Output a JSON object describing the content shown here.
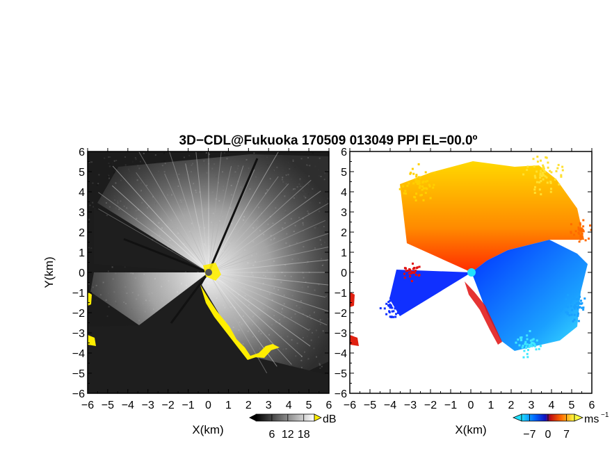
{
  "title": "3D−CDL@Fukuoka 170509 013049 PPI EL=00.0º",
  "colors": {
    "highlight": "#ffee00",
    "echo_dark": "#1a1a1a",
    "echo_bright": "#f0f0f0",
    "vel_negative": "#0033ff",
    "vel_positive": "#ff2200",
    "vel_near_zero": "#ffe000"
  },
  "chart_data": [
    {
      "type": "heatmap",
      "panel": "left",
      "field": "backscatter intensity",
      "xlabel": "X(km)",
      "ylabel": "Y(km)",
      "xlim": [
        -6,
        6
      ],
      "ylim": [
        -6,
        6
      ],
      "x_ticks": [
        "−6",
        "−5",
        "−4",
        "−3",
        "−2",
        "−1",
        "0",
        "1",
        "2",
        "3",
        "4",
        "5",
        "6"
      ],
      "y_ticks": [
        "6",
        "5",
        "4",
        "3",
        "2",
        "1",
        "0",
        "−1",
        "−2",
        "−3",
        "−4",
        "−5",
        "−6"
      ],
      "colorbar": {
        "unit": "dB",
        "ticks": [
          "6",
          "12",
          "18"
        ],
        "range": [
          0,
          22
        ]
      },
      "grid": false
    },
    {
      "type": "heatmap",
      "panel": "right",
      "field": "radial velocity",
      "xlabel": "X(km)",
      "xlim": [
        -6,
        6
      ],
      "ylim": [
        -6,
        6
      ],
      "x_ticks": [
        "−6",
        "−5",
        "−4",
        "−3",
        "−2",
        "−1",
        "0",
        "1",
        "2",
        "3",
        "4",
        "5",
        "6"
      ],
      "y_ticks": [
        "6",
        "5",
        "4",
        "3",
        "2",
        "1",
        "0",
        "−1",
        "−2",
        "−3",
        "−4",
        "−5",
        "−6"
      ],
      "colorbar": {
        "unit": "ms",
        "unit_exp": "−1",
        "ticks": [
          "−7",
          "0",
          "7"
        ],
        "range": [
          -10,
          10
        ]
      },
      "grid": false
    }
  ]
}
